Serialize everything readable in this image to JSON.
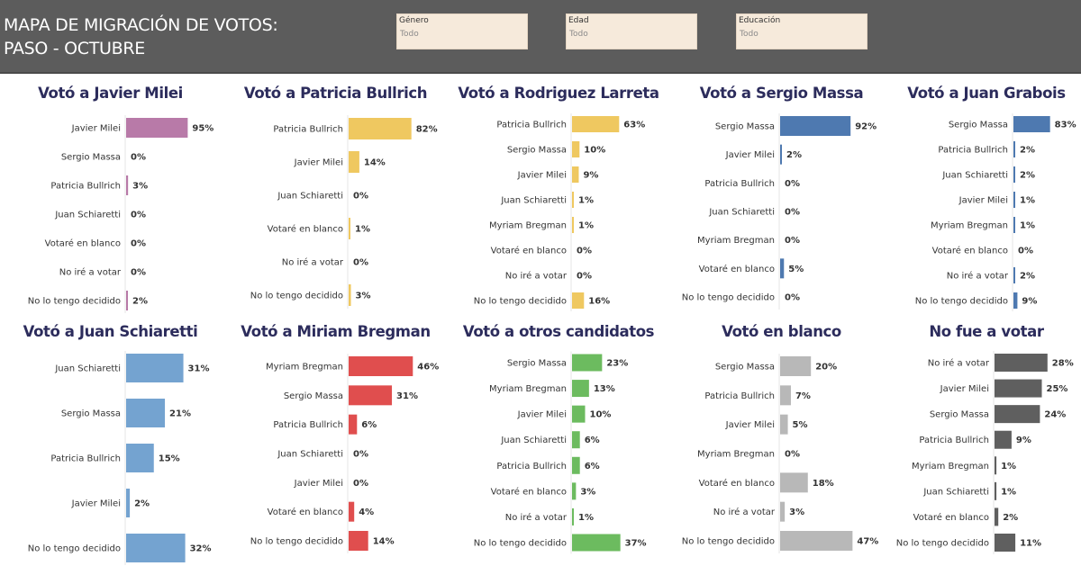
{
  "header": {
    "title_line1": "MAPA DE MIGRACIÓN DE VOTOS:",
    "title_line2": "PASO - OCTUBRE"
  },
  "filters": [
    {
      "label": "Género",
      "value": "Todo"
    },
    {
      "label": "Edad",
      "value": "Todo"
    },
    {
      "label": "Educación",
      "value": "Todo"
    }
  ],
  "chart_data": [
    {
      "type": "bar",
      "orientation": "horizontal",
      "title": "Votó a Javier Milei",
      "color": "#b87aa8",
      "categories": [
        "Javier Milei",
        "Sergio Massa",
        "Patricia Bullrich",
        "Juan Schiaretti",
        "Votaré en blanco",
        "No iré a votar",
        "No lo tengo decidido"
      ],
      "values": [
        95,
        0,
        3,
        0,
        0,
        0,
        2
      ],
      "labels": [
        "95%",
        "0%",
        "3%",
        "0%",
        "0%",
        "0%",
        "2%"
      ]
    },
    {
      "type": "bar",
      "orientation": "horizontal",
      "title": "Votó a Patricia Bullrich",
      "color": "#efc860",
      "categories": [
        "Patricia Bullrich",
        "Javier Milei",
        "Juan Schiaretti",
        "Votaré en blanco",
        "No iré a votar",
        "No lo tengo decidido"
      ],
      "values": [
        82,
        14,
        0,
        1,
        0,
        3
      ],
      "labels": [
        "82%",
        "14%",
        "0%",
        "1%",
        "0%",
        "3%"
      ]
    },
    {
      "type": "bar",
      "orientation": "horizontal",
      "title": "Votó a Rodriguez Larreta",
      "color": "#efc860",
      "categories": [
        "Patricia Bullrich",
        "Sergio Massa",
        "Javier Milei",
        "Juan Schiaretti",
        "Myriam Bregman",
        "Votaré en blanco",
        "No iré a votar",
        "No lo tengo decidido"
      ],
      "values": [
        63,
        10,
        9,
        1,
        1,
        0,
        0,
        16
      ],
      "labels": [
        "63%",
        "10%",
        "9%",
        "1%",
        "1%",
        "0%",
        "0%",
        "16%"
      ]
    },
    {
      "type": "bar",
      "orientation": "horizontal",
      "title": "Votó a Sergio Massa",
      "color": "#4e79b0",
      "categories": [
        "Sergio Massa",
        "Javier Milei",
        "Patricia Bullrich",
        "Juan Schiaretti",
        "Myriam Bregman",
        "Votaré en blanco",
        "No lo tengo decidido"
      ],
      "values": [
        92,
        2,
        0,
        0,
        0,
        5,
        0
      ],
      "labels": [
        "92%",
        "2%",
        "0%",
        "0%",
        "0%",
        "5%",
        "0%"
      ]
    },
    {
      "type": "bar",
      "orientation": "horizontal",
      "title": "Votó a Juan Grabois",
      "color": "#4e79b0",
      "categories": [
        "Sergio Massa",
        "Patricia Bullrich",
        "Juan Schiaretti",
        "Javier Milei",
        "Myriam Bregman",
        "Votaré en blanco",
        "No iré a votar",
        "No lo tengo decidido"
      ],
      "values": [
        83,
        2,
        2,
        1,
        1,
        0,
        2,
        9
      ],
      "labels": [
        "83%",
        "2%",
        "2%",
        "1%",
        "1%",
        "0%",
        "2%",
        "9%"
      ]
    },
    {
      "type": "bar",
      "orientation": "horizontal",
      "title": "Votó a Juan Schiaretti",
      "color": "#74a3d0",
      "categories": [
        "Juan Schiaretti",
        "Sergio Massa",
        "Patricia Bullrich",
        "Javier Milei",
        "No lo tengo decidido"
      ],
      "values": [
        31,
        21,
        15,
        2,
        32
      ],
      "labels": [
        "31%",
        "21%",
        "15%",
        "2%",
        "32%"
      ]
    },
    {
      "type": "bar",
      "orientation": "horizontal",
      "title": "Votó a Miriam Bregman",
      "color": "#e04e4e",
      "categories": [
        "Myriam Bregman",
        "Sergio Massa",
        "Patricia Bullrich",
        "Juan Schiaretti",
        "Javier Milei",
        "Votaré en blanco",
        "No lo tengo decidido"
      ],
      "values": [
        46,
        31,
        6,
        0,
        0,
        4,
        14
      ],
      "labels": [
        "46%",
        "31%",
        "6%",
        "0%",
        "0%",
        "4%",
        "14%"
      ]
    },
    {
      "type": "bar",
      "orientation": "horizontal",
      "title": "Votó a otros candidatos",
      "color": "#6cbb5f",
      "categories": [
        "Sergio Massa",
        "Myriam Bregman",
        "Javier Milei",
        "Juan Schiaretti",
        "Patricia Bullrich",
        "Votaré en blanco",
        "No iré a votar",
        "No lo tengo decidido"
      ],
      "values": [
        23,
        13,
        10,
        6,
        6,
        3,
        1,
        37
      ],
      "labels": [
        "23%",
        "13%",
        "10%",
        "6%",
        "6%",
        "3%",
        "1%",
        "37%"
      ]
    },
    {
      "type": "bar",
      "orientation": "horizontal",
      "title": "Votó en blanco",
      "color": "#b8b8b8",
      "categories": [
        "Sergio Massa",
        "Patricia Bullrich",
        "Javier Milei",
        "Myriam Bregman",
        "Votaré en blanco",
        "No iré a votar",
        "No lo tengo decidido"
      ],
      "values": [
        20,
        7,
        5,
        0,
        18,
        3,
        47
      ],
      "labels": [
        "20%",
        "7%",
        "5%",
        "0%",
        "18%",
        "3%",
        "47%"
      ]
    },
    {
      "type": "bar",
      "orientation": "horizontal",
      "title": "No fue a votar",
      "color": "#5f5f5f",
      "categories": [
        "No iré a votar",
        "Javier Milei",
        "Sergio Massa",
        "Patricia Bullrich",
        "Myriam Bregman",
        "Juan Schiaretti",
        "Votaré en blanco",
        "No lo tengo decidido"
      ],
      "values": [
        28,
        25,
        24,
        9,
        1,
        1,
        2,
        11
      ],
      "labels": [
        "28%",
        "25%",
        "24%",
        "9%",
        "1%",
        "1%",
        "2%",
        "11%"
      ]
    }
  ]
}
